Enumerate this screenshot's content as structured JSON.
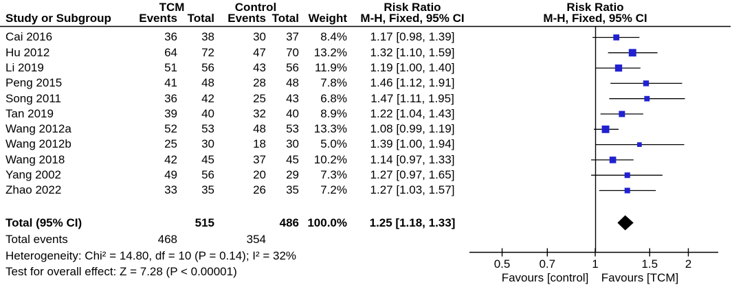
{
  "header": {
    "group1": "TCM",
    "group2": "Control",
    "col_study": "Study or Subgroup",
    "col_events": "Events",
    "col_total": "Total",
    "col_weight": "Weight",
    "rr_title": "Risk Ratio",
    "rr_subtitle": "M-H, Fixed, 95% CI"
  },
  "colors": {
    "square": "#2121D1",
    "line": "#000000",
    "diamond": "#000000",
    "text": "#000000"
  },
  "chart_data": {
    "type": "forest",
    "effect_measure": "Risk Ratio",
    "method": "M-H, Fixed, 95% CI",
    "x_scale": "log10",
    "axis_ticks": [
      {
        "value": 0.5,
        "label": "0.5"
      },
      {
        "value": 0.7,
        "label": "0.7"
      },
      {
        "value": 1,
        "label": "1"
      },
      {
        "value": 1.5,
        "label": "1.5"
      },
      {
        "value": 2,
        "label": "2"
      }
    ],
    "axis_range": [
      0.39,
      2.5
    ],
    "favours_left": "Favours [control]",
    "favours_right": "Favours [TCM]",
    "studies": [
      {
        "name": "Cai 2016",
        "tcm_events": 36,
        "tcm_total": 38,
        "ctrl_events": 30,
        "ctrl_total": 37,
        "weight": "8.4%",
        "weight_pct": 8.4,
        "rr": 1.17,
        "ci_low": 0.98,
        "ci_high": 1.39,
        "rr_label": "1.17 [0.98, 1.39]"
      },
      {
        "name": "Hu 2012",
        "tcm_events": 64,
        "tcm_total": 72,
        "ctrl_events": 47,
        "ctrl_total": 70,
        "weight": "13.2%",
        "weight_pct": 13.2,
        "rr": 1.32,
        "ci_low": 1.1,
        "ci_high": 1.59,
        "rr_label": "1.32 [1.10, 1.59]"
      },
      {
        "name": "Li 2019",
        "tcm_events": 51,
        "tcm_total": 56,
        "ctrl_events": 43,
        "ctrl_total": 56,
        "weight": "11.9%",
        "weight_pct": 11.9,
        "rr": 1.19,
        "ci_low": 1.0,
        "ci_high": 1.4,
        "rr_label": "1.19 [1.00, 1.40]"
      },
      {
        "name": "Peng 2015",
        "tcm_events": 41,
        "tcm_total": 48,
        "ctrl_events": 28,
        "ctrl_total": 48,
        "weight": "7.8%",
        "weight_pct": 7.8,
        "rr": 1.46,
        "ci_low": 1.12,
        "ci_high": 1.91,
        "rr_label": "1.46 [1.12, 1.91]"
      },
      {
        "name": "Song 2011",
        "tcm_events": 36,
        "tcm_total": 42,
        "ctrl_events": 25,
        "ctrl_total": 43,
        "weight": "6.8%",
        "weight_pct": 6.8,
        "rr": 1.47,
        "ci_low": 1.11,
        "ci_high": 1.95,
        "rr_label": "1.47 [1.11, 1.95]"
      },
      {
        "name": "Tan 2019",
        "tcm_events": 39,
        "tcm_total": 40,
        "ctrl_events": 32,
        "ctrl_total": 40,
        "weight": "8.9%",
        "weight_pct": 8.9,
        "rr": 1.22,
        "ci_low": 1.04,
        "ci_high": 1.43,
        "rr_label": "1.22 [1.04, 1.43]"
      },
      {
        "name": "Wang 2012a",
        "tcm_events": 52,
        "tcm_total": 53,
        "ctrl_events": 48,
        "ctrl_total": 53,
        "weight": "13.3%",
        "weight_pct": 13.3,
        "rr": 1.08,
        "ci_low": 0.99,
        "ci_high": 1.19,
        "rr_label": "1.08 [0.99, 1.19]"
      },
      {
        "name": "Wang 2012b",
        "tcm_events": 25,
        "tcm_total": 30,
        "ctrl_events": 18,
        "ctrl_total": 30,
        "weight": "5.0%",
        "weight_pct": 5.0,
        "rr": 1.39,
        "ci_low": 1.0,
        "ci_high": 1.94,
        "rr_label": "1.39 [1.00, 1.94]"
      },
      {
        "name": "Wang 2018",
        "tcm_events": 42,
        "tcm_total": 45,
        "ctrl_events": 37,
        "ctrl_total": 45,
        "weight": "10.2%",
        "weight_pct": 10.2,
        "rr": 1.14,
        "ci_low": 0.97,
        "ci_high": 1.33,
        "rr_label": "1.14 [0.97, 1.33]"
      },
      {
        "name": "Yang 2002",
        "tcm_events": 49,
        "tcm_total": 56,
        "ctrl_events": 20,
        "ctrl_total": 29,
        "weight": "7.3%",
        "weight_pct": 7.3,
        "rr": 1.27,
        "ci_low": 0.97,
        "ci_high": 1.65,
        "rr_label": "1.27 [0.97, 1.65]"
      },
      {
        "name": "Zhao 2022",
        "tcm_events": 33,
        "tcm_total": 35,
        "ctrl_events": 26,
        "ctrl_total": 35,
        "weight": "7.2%",
        "weight_pct": 7.2,
        "rr": 1.27,
        "ci_low": 1.03,
        "ci_high": 1.57,
        "rr_label": "1.27 [1.03, 1.57]"
      }
    ],
    "total": {
      "label": "Total (95% CI)",
      "tcm_total": 515,
      "ctrl_total": 486,
      "weight": "100.0%",
      "rr": 1.25,
      "ci_low": 1.18,
      "ci_high": 1.33,
      "rr_label": "1.25 [1.18, 1.33]"
    },
    "total_events": {
      "label": "Total events",
      "tcm": 468,
      "ctrl": 354
    },
    "heterogeneity": "Heterogeneity: Chi² = 14.80, df = 10 (P = 0.14); I² = 32%",
    "overall_effect": "Test for overall effect: Z = 7.28 (P < 0.00001)"
  }
}
